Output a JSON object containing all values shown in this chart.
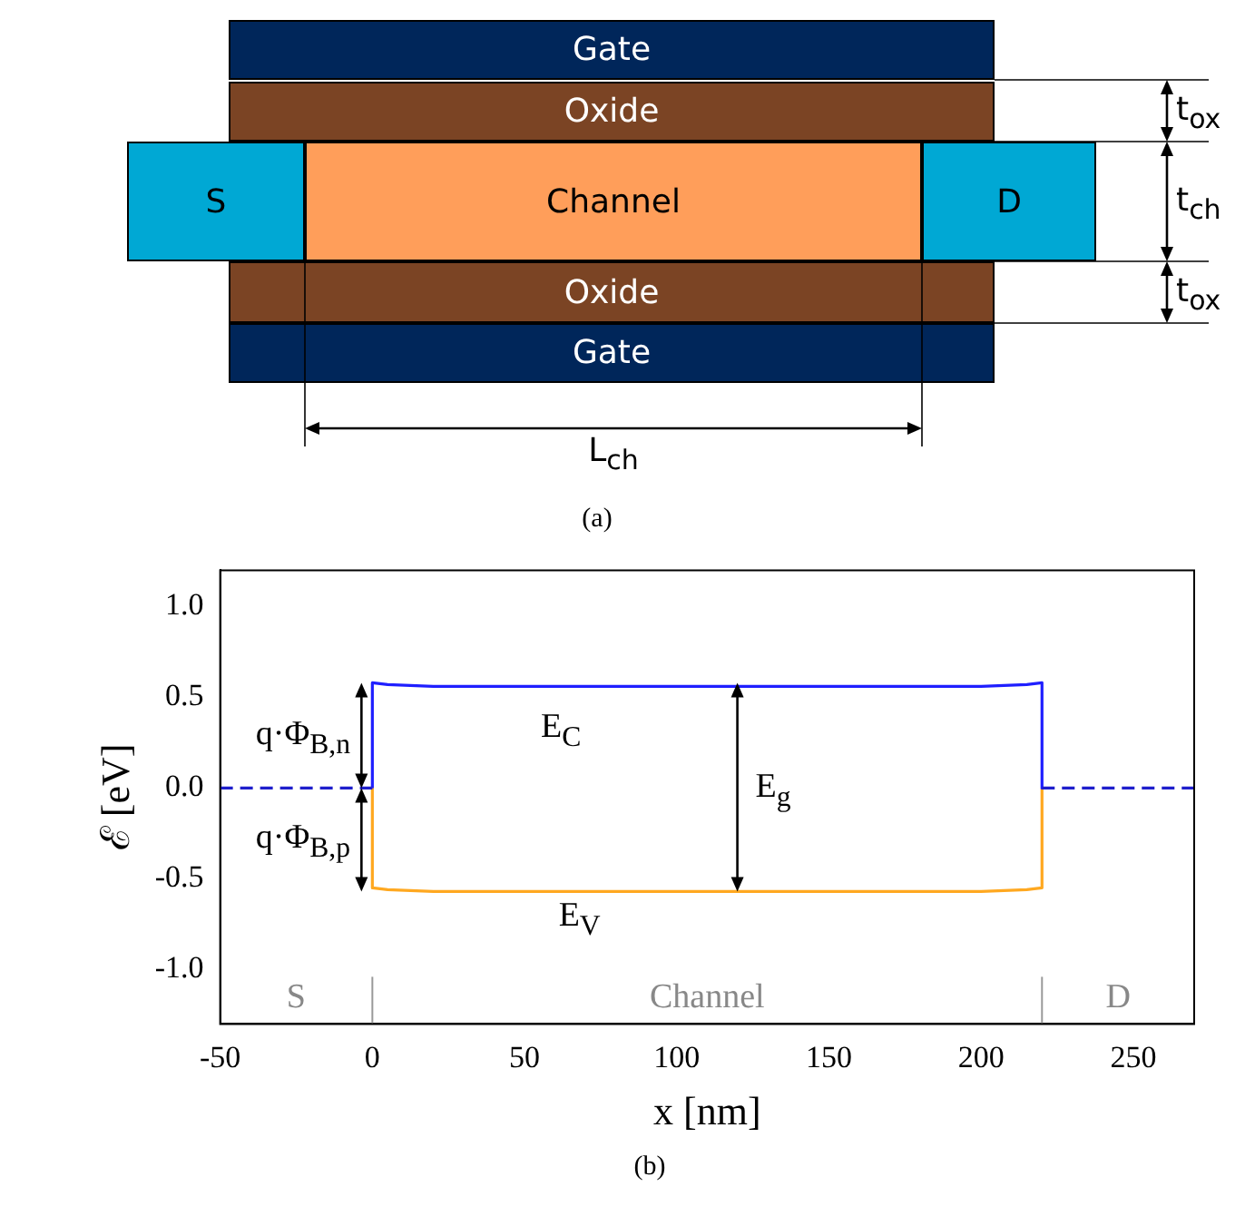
{
  "chart_data": [
    {
      "type": "other",
      "annotations": [
        "Gate",
        "Oxide",
        "S",
        "Channel",
        "D",
        "Oxide",
        "Gate",
        "t$_{ox}$",
        "t$_{ch}$",
        "t$_{ox}$",
        "L$_{ch}$",
        "(a)"
      ]
    },
    {
      "type": "line",
      "xlabel": "x [nm]",
      "ylabel": "ℰ [eV]",
      "xlim": [
        -50,
        270
      ],
      "ylim": [
        -1.3,
        1.2
      ],
      "xticks": [
        -50,
        0,
        50,
        100,
        150,
        200,
        250
      ],
      "yticks": [
        {
          "value": -1,
          "label": "-1.0"
        },
        {
          "value": -0.5,
          "label": "-0.5"
        },
        {
          "value": 0,
          "label": "0.0"
        },
        {
          "value": 0.5,
          "label": "0.5"
        },
        {
          "value": 1,
          "label": "1.0"
        }
      ],
      "legend": false,
      "marker": "none",
      "series": [
        {
          "color": "#1f1fcc",
          "line_style": "dashed",
          "x": [
            -50,
            0,
            110,
            220,
            270
          ],
          "values": [
            0,
            0,
            null,
            0,
            0
          ]
        },
        {
          "color": "#1f1fff",
          "line_style": "solid",
          "x": [
            0,
            0,
            5,
            20,
            50,
            100,
            150,
            200,
            215,
            220,
            220
          ],
          "values": [
            0,
            0.58,
            0.57,
            0.56,
            0.56,
            0.56,
            0.56,
            0.56,
            0.57,
            0.58,
            0
          ]
        },
        {
          "color": "#ffa820",
          "line_style": "solid",
          "x": [
            0,
            0,
            5,
            20,
            50,
            100,
            150,
            200,
            215,
            220,
            220
          ],
          "values": [
            0,
            -0.55,
            -0.56,
            -0.57,
            -0.57,
            -0.57,
            -0.57,
            -0.57,
            -0.56,
            -0.55,
            0
          ]
        }
      ],
      "ref_lines": [
        {
          "axis": "x",
          "value": 0,
          "color": "#999999"
        },
        {
          "axis": "x",
          "value": 220,
          "color": "#999999"
        }
      ],
      "annotations": [
        "E$_{C}$",
        "E$_{V}$",
        "E$_{g}$",
        "q·Φ$_{B,n}$",
        "q·Φ$_{B,p}$",
        "S",
        "Channel",
        "D",
        "(b)"
      ]
    }
  ]
}
